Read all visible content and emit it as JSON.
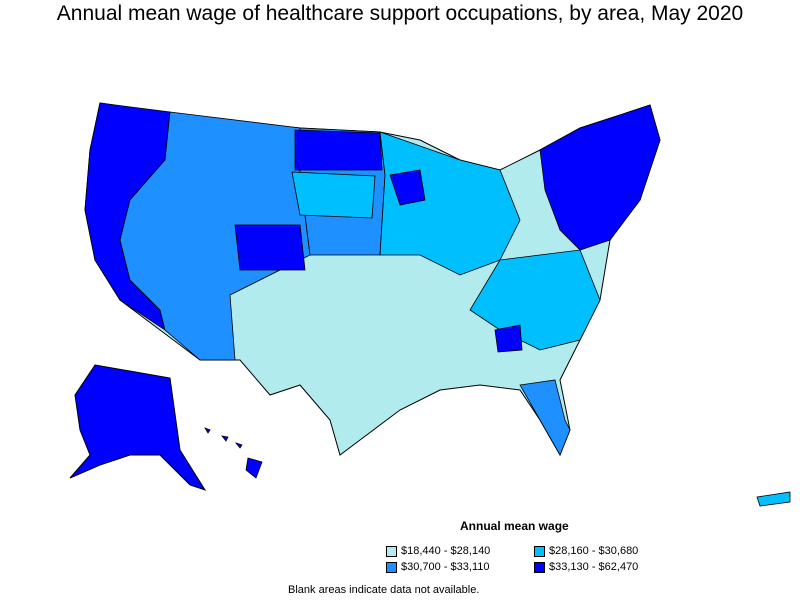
{
  "title": "Annual mean wage of healthcare support occupations, by area, May 2020",
  "legend": {
    "title": "Annual mean wage",
    "items": [
      {
        "label": "$18,440 - $28,140",
        "color": "#b2ebee"
      },
      {
        "label": "$28,160 - $30,680",
        "color": "#00bfff"
      },
      {
        "label": "$30,700 - $33,110",
        "color": "#1e90ff"
      },
      {
        "label": "$33,130 - $62,470",
        "color": "#0000ff"
      }
    ]
  },
  "note": "Blank areas indicate data not available.",
  "colors": {
    "tier1": "#b2ebee",
    "tier2": "#00bfff",
    "tier3": "#1e90ff",
    "tier4": "#0000ff",
    "border": "#000000"
  }
}
